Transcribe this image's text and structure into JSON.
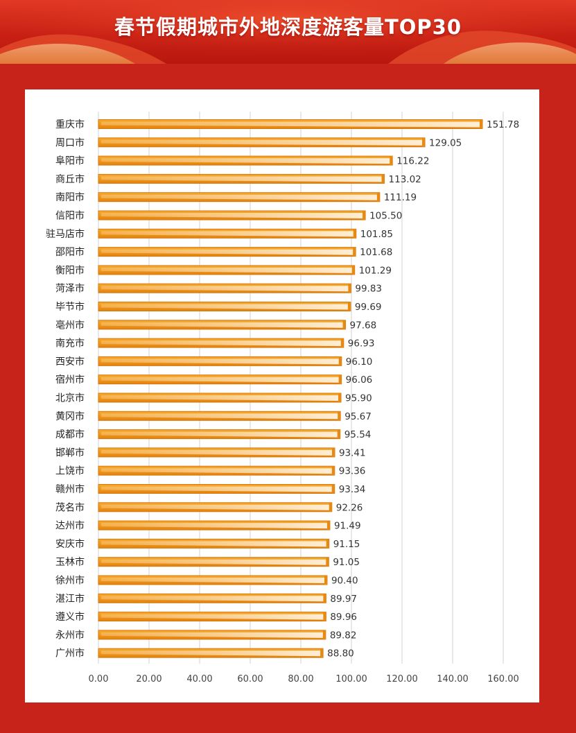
{
  "header": {
    "title": "春节假期城市外地深度游客量TOP30"
  },
  "colors": {
    "background": "#c8231b",
    "bar_fill": "#f29a1c",
    "bar_highlight": "#fde6c3",
    "bar_edge": "#d8780e",
    "gridline": "#d9d9d9",
    "text": "#333333"
  },
  "chart_data": {
    "type": "bar",
    "orientation": "horizontal",
    "categories": [
      "重庆市",
      "周口市",
      "阜阳市",
      "商丘市",
      "南阳市",
      "信阳市",
      "驻马店市",
      "邵阳市",
      "衡阳市",
      "菏泽市",
      "毕节市",
      "亳州市",
      "南充市",
      "西安市",
      "宿州市",
      "北京市",
      "黄冈市",
      "成都市",
      "邯郸市",
      "上饶市",
      "赣州市",
      "茂名市",
      "达州市",
      "安庆市",
      "玉林市",
      "徐州市",
      "湛江市",
      "遵义市",
      "永州市",
      "广州市"
    ],
    "values": [
      151.78,
      129.05,
      116.22,
      113.02,
      111.19,
      105.5,
      101.85,
      101.68,
      101.29,
      99.83,
      99.69,
      97.68,
      96.93,
      96.1,
      96.06,
      95.9,
      95.67,
      95.54,
      93.41,
      93.36,
      93.34,
      92.26,
      91.49,
      91.15,
      91.05,
      90.4,
      89.97,
      89.96,
      89.82,
      88.8
    ],
    "value_labels": [
      "151.78",
      "129.05",
      "116.22",
      "113.02",
      "111.19",
      "105.50",
      "101.85",
      "101.68",
      "101.29",
      "99.83",
      "99.69",
      "97.68",
      "96.93",
      "96.10",
      "96.06",
      "95.90",
      "95.67",
      "95.54",
      "93.41",
      "93.36",
      "93.34",
      "92.26",
      "91.49",
      "91.15",
      "91.05",
      "90.40",
      "89.97",
      "89.96",
      "89.82",
      "88.80"
    ],
    "x_ticks": [
      "0.00",
      "20.00",
      "40.00",
      "60.00",
      "80.00",
      "100.00",
      "120.00",
      "140.00",
      "160.00"
    ],
    "xlim": [
      0,
      160
    ],
    "grid": true,
    "title": "",
    "xlabel": "",
    "ylabel": ""
  }
}
